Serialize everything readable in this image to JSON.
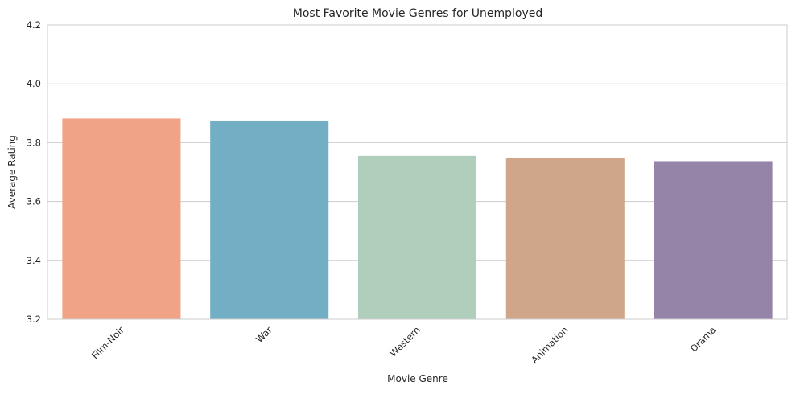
{
  "chart_data": {
    "type": "bar",
    "title": "Most Favorite Movie Genres for Unemployed",
    "xlabel": "Movie Genre",
    "ylabel": "Average Rating",
    "categories": [
      "Film-Noir",
      "War",
      "Western",
      "Animation",
      "Drama"
    ],
    "values": [
      3.882,
      3.875,
      3.755,
      3.748,
      3.737
    ],
    "colors": [
      "#f0a386",
      "#72afc4",
      "#afcfbc",
      "#cfa689",
      "#9583a8"
    ],
    "ylim": [
      3.2,
      4.2
    ],
    "yticks": [
      "3.2",
      "3.4",
      "3.6",
      "3.8",
      "4.0",
      "4.2"
    ],
    "grid": true,
    "legend": "none"
  }
}
